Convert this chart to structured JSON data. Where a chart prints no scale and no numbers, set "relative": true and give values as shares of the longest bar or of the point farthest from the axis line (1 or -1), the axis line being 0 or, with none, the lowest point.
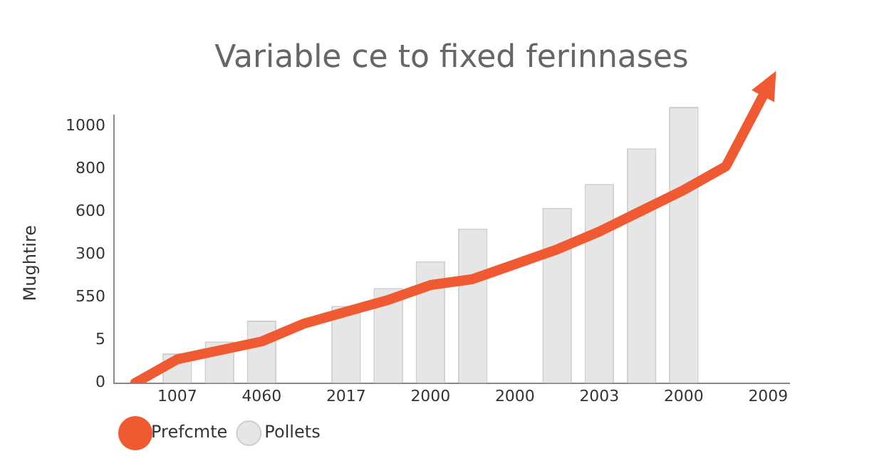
{
  "chart_data": {
    "type": "bar",
    "title": "Variable ce to fixed ferinnases",
    "ylabel": "Mughtire",
    "relative": true,
    "categories": [
      null,
      "1007",
      null,
      "4060",
      null,
      "2017",
      null,
      "2000",
      null,
      "2000",
      null,
      "2003",
      null,
      "2000",
      null,
      "2009"
    ],
    "annotations": [
      "0",
      "5",
      "550",
      "300",
      "600",
      "800",
      "1000"
    ],
    "series": [
      {
        "name": "Pollets",
        "color": "#e6e6e6",
        "values": [
          null,
          0.1,
          0.14,
          0.21,
          null,
          0.26,
          0.32,
          0.41,
          0.52,
          null,
          0.59,
          0.67,
          0.79,
          0.93,
          null,
          null
        ]
      },
      {
        "type": "line",
        "name": "Prefcmte",
        "color": "#f05a32",
        "values": [
          0,
          0.08,
          0.11,
          0.14,
          0.2,
          0.24,
          0.28,
          0.33,
          0.35,
          0.4,
          0.45,
          0.51,
          0.58,
          0.65,
          0.73,
          1
        ]
      }
    ],
    "legend": "bottom left",
    "marker": "none",
    "line_style": "solid"
  }
}
